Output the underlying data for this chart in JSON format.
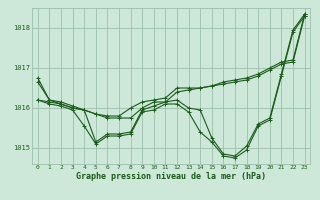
{
  "background_color": "#cde8d8",
  "grid_color": "#9dbdad",
  "line_color": "#1a5c1a",
  "xlabel": "Graphe pression niveau de la mer (hPa)",
  "ylim": [
    1014.6,
    1018.5
  ],
  "yticks": [
    1015,
    1016,
    1017,
    1018
  ],
  "xticks": [
    0,
    1,
    2,
    3,
    4,
    5,
    6,
    7,
    8,
    9,
    10,
    11,
    12,
    13,
    14,
    15,
    16,
    17,
    18,
    19,
    20,
    21,
    22,
    23
  ],
  "line1": [
    1016.75,
    1016.2,
    1016.15,
    1016.05,
    1015.95,
    1015.85,
    1015.8,
    1015.8,
    1016.0,
    1016.15,
    1016.2,
    1016.25,
    1016.5,
    1016.5,
    1016.5,
    1016.55,
    1016.65,
    1016.7,
    1016.75,
    1016.85,
    1017.0,
    1017.15,
    1017.2,
    1018.35
  ],
  "line2": [
    1016.2,
    1016.15,
    1016.1,
    1016.0,
    1015.95,
    1015.15,
    1015.35,
    1015.35,
    1015.4,
    1015.95,
    1016.05,
    1016.15,
    1016.2,
    1016.0,
    1015.95,
    1015.25,
    1014.85,
    1014.8,
    1015.05,
    1015.6,
    1015.75,
    1016.85,
    1017.95,
    1018.35
  ],
  "line3": [
    1016.65,
    1016.2,
    1016.1,
    1016.0,
    1015.95,
    1015.85,
    1015.75,
    1015.75,
    1015.75,
    1016.0,
    1016.15,
    1016.15,
    1016.4,
    1016.45,
    1016.5,
    1016.55,
    1016.6,
    1016.65,
    1016.7,
    1016.8,
    1016.95,
    1017.1,
    1017.15,
    1018.3
  ],
  "line4": [
    1016.2,
    1016.1,
    1016.05,
    1015.95,
    1015.55,
    1015.1,
    1015.3,
    1015.3,
    1015.35,
    1015.9,
    1015.95,
    1016.1,
    1016.1,
    1015.9,
    1015.4,
    1015.15,
    1014.8,
    1014.75,
    1014.95,
    1015.55,
    1015.7,
    1016.8,
    1017.9,
    1018.3
  ]
}
